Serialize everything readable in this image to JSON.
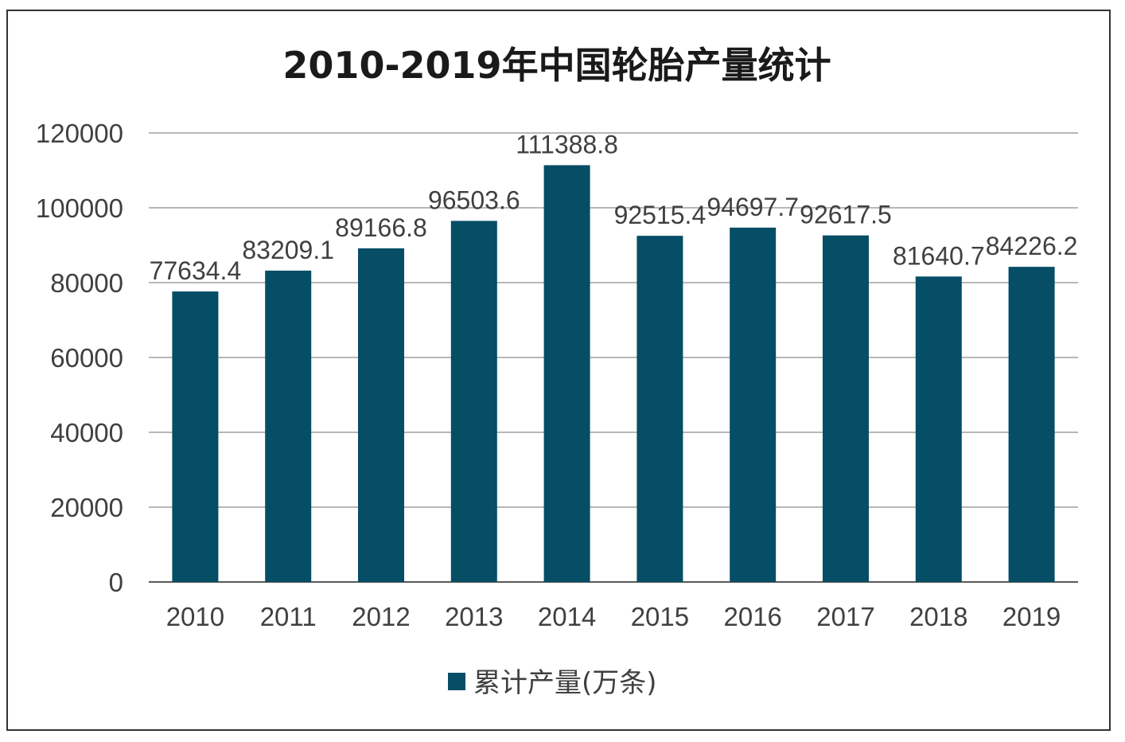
{
  "colors": {
    "bar": "#064d66",
    "grid": "#8c8c8c",
    "axis": "#595959",
    "text": "#404040",
    "title": "#1a1a1a"
  },
  "chart_data": {
    "type": "bar",
    "title": "2010-2019年中国轮胎产量统计",
    "categories": [
      "2010",
      "2011",
      "2012",
      "2013",
      "2014",
      "2015",
      "2016",
      "2017",
      "2018",
      "2019"
    ],
    "series": [
      {
        "name": "累计产量(万条)",
        "values": [
          77634.4,
          83209.1,
          89166.8,
          96503.6,
          111388.8,
          92515.4,
          94697.7,
          92617.5,
          81640.7,
          84226.2
        ],
        "labels": [
          "77634.4",
          "83209.1",
          "89166.8",
          "96503.6",
          "111388.8",
          "92515.4",
          "94697.7",
          "92617.5",
          "81640.7",
          "84226.2"
        ]
      }
    ],
    "yticks": [
      "0",
      "20000",
      "40000",
      "60000",
      "80000",
      "100000",
      "120000"
    ],
    "ylim": [
      0,
      120000
    ],
    "xlabel": "",
    "ylabel": "",
    "grid": true,
    "legend": "bottom-center"
  }
}
